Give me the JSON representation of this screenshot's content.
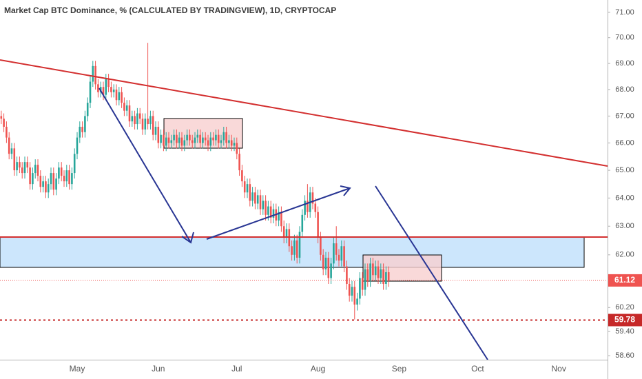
{
  "chart_data": {
    "type": "candlestick",
    "title": "Market Cap BTC Dominance, % (CALCULATED BY TRADINGVIEW), 1D, CRYPTOCAP",
    "categories": [
      null,
      null,
      null,
      null,
      null,
      null,
      null,
      null,
      null,
      null,
      null,
      null,
      null,
      null,
      null,
      null,
      null,
      null,
      null,
      null,
      null,
      null,
      null,
      null,
      null,
      null,
      null,
      null,
      null,
      "May",
      null,
      null,
      null,
      null,
      null,
      null,
      null,
      null,
      null,
      null,
      null,
      null,
      null,
      null,
      null,
      null,
      null,
      null,
      null,
      null,
      null,
      null,
      null,
      null,
      null,
      null,
      null,
      null,
      null,
      null,
      "Jun",
      null,
      null,
      null,
      null,
      null,
      null,
      null,
      null,
      null,
      null,
      null,
      null,
      null,
      null,
      null,
      null,
      null,
      null,
      null,
      null,
      null,
      null,
      null,
      null,
      null,
      null,
      null,
      null,
      null,
      "Jul",
      null,
      null,
      null,
      null,
      null,
      null,
      null,
      null,
      null,
      null,
      null,
      null,
      null,
      null,
      null,
      null,
      null,
      null,
      null,
      null,
      null,
      null,
      null,
      null,
      null,
      null,
      null,
      null,
      null,
      null,
      "Aug",
      null,
      null,
      null,
      null,
      null,
      null,
      null,
      null,
      null,
      null,
      null,
      null,
      null,
      null,
      null,
      null,
      null,
      null,
      null,
      null,
      null,
      null,
      null,
      null,
      null,
      null,
      null,
      null,
      null,
      null,
      "Sep",
      null,
      null,
      null,
      null,
      null,
      null,
      null,
      null,
      null,
      null,
      null,
      null,
      null,
      null,
      null,
      null,
      null,
      null,
      null,
      null,
      null,
      null,
      null,
      null,
      null,
      null,
      null,
      null,
      null,
      "Oct",
      null,
      null,
      null,
      null,
      null,
      null,
      null,
      null,
      null,
      null,
      null,
      null,
      null,
      null,
      null,
      null,
      null,
      null,
      null,
      null,
      null,
      null,
      null,
      null,
      null,
      null,
      null,
      null,
      null,
      null,
      "Nov",
      null,
      null,
      null,
      null,
      null,
      null,
      null,
      null,
      null,
      null
    ],
    "open": [
      67.0,
      66.9,
      66.6,
      66.2,
      65.6,
      65.8,
      65.0,
      65.3,
      65.1,
      64.9,
      65.3,
      65.1,
      64.5,
      64.9,
      65.2,
      64.8,
      64.4,
      64.6,
      64.2,
      64.5,
      64.9,
      64.3,
      64.7,
      65.1,
      64.8,
      64.6,
      65.0,
      64.5,
      64.9,
      65.6,
      66.2,
      66.6,
      66.4,
      67.0,
      67.5,
      68.3,
      68.9,
      68.2,
      67.9,
      68.1,
      67.8,
      68.4,
      68.1,
      67.9,
      68.0,
      67.6,
      67.9,
      67.5,
      67.2,
      67.4,
      66.8,
      67.0,
      66.7,
      67.1,
      66.9,
      66.5,
      66.9,
      66.7,
      67.0,
      66.3,
      66.6,
      66.0,
      66.3,
      65.9,
      66.2,
      66.0,
      66.1,
      66.3,
      66.0,
      66.2,
      65.9,
      66.1,
      66.3,
      66.1,
      66.0,
      66.2,
      66.3,
      66.0,
      66.2,
      66.1,
      65.9,
      66.2,
      66.1,
      66.3,
      66.0,
      66.1,
      66.4,
      66.0,
      66.1,
      65.9,
      66.0,
      65.6,
      65.0,
      64.6,
      64.2,
      64.5,
      63.9,
      64.2,
      63.8,
      64.1,
      63.6,
      63.9,
      63.4,
      63.7,
      63.3,
      63.6,
      63.2,
      63.5,
      63.0,
      62.6,
      62.9,
      62.3,
      62.0,
      62.5,
      61.9,
      62.8,
      63.4,
      63.9,
      63.5,
      64.2,
      63.8,
      63.5,
      62.6,
      62.0,
      61.5,
      61.9,
      61.2,
      61.7,
      62.4,
      62.0,
      61.8,
      62.3,
      61.6,
      61.0,
      60.6,
      60.9,
      60.3,
      60.5,
      61.2,
      60.8,
      61.5,
      61.1,
      61.7,
      61.3,
      61.6,
      61.2,
      61.5,
      61.0,
      61.4,
      null,
      null,
      null,
      null,
      null,
      null,
      null,
      null,
      null,
      null,
      null,
      null,
      null,
      null,
      null,
      null,
      null,
      null,
      null,
      null,
      null,
      null,
      null,
      null,
      null,
      null,
      null,
      null,
      null,
      null,
      null,
      null,
      null,
      null,
      null,
      null,
      null,
      null,
      null,
      null,
      null,
      null,
      null,
      null,
      null,
      null,
      null,
      null,
      null,
      null,
      null,
      null,
      null,
      null,
      null,
      null,
      null,
      null,
      null,
      null,
      null,
      null,
      null,
      null,
      null,
      null,
      null,
      null,
      null,
      null,
      null,
      null,
      null,
      null,
      null
    ],
    "high": [
      67.2,
      67.1,
      66.8,
      66.4,
      66.0,
      66.0,
      65.5,
      65.5,
      65.3,
      65.5,
      65.5,
      65.3,
      65.1,
      65.4,
      65.4,
      65.0,
      64.8,
      64.8,
      64.7,
      65.1,
      65.1,
      64.9,
      65.3,
      65.3,
      65.0,
      65.2,
      65.2,
      65.1,
      65.8,
      66.4,
      66.8,
      66.8,
      67.2,
      67.7,
      68.5,
      69.1,
      69.1,
      68.4,
      68.3,
      68.3,
      68.6,
      68.6,
      68.3,
      68.2,
      68.2,
      68.1,
      68.1,
      67.7,
      67.6,
      67.6,
      67.2,
      67.2,
      67.3,
      67.3,
      67.1,
      67.1,
      69.8,
      67.2,
      67.2,
      66.8,
      66.8,
      66.5,
      66.5,
      66.4,
      66.4,
      66.3,
      66.5,
      66.5,
      66.4,
      66.4,
      66.3,
      66.5,
      66.5,
      66.3,
      66.4,
      66.5,
      66.5,
      66.4,
      66.4,
      66.3,
      66.4,
      66.4,
      66.5,
      66.5,
      66.3,
      66.6,
      66.6,
      66.3,
      66.3,
      66.2,
      66.2,
      65.8,
      65.2,
      64.8,
      64.7,
      64.7,
      64.4,
      64.4,
      64.3,
      64.3,
      64.1,
      64.1,
      63.9,
      63.9,
      63.8,
      63.8,
      63.7,
      63.7,
      63.2,
      63.1,
      63.1,
      62.5,
      62.7,
      62.7,
      63.0,
      63.6,
      64.1,
      64.5,
      64.4,
      64.4,
      64.0,
      63.7,
      62.8,
      62.2,
      62.1,
      62.1,
      61.9,
      62.6,
      63.0,
      62.2,
      62.5,
      62.5,
      61.8,
      61.2,
      61.1,
      61.1,
      60.7,
      61.4,
      61.4,
      61.7,
      61.7,
      61.9,
      61.9,
      61.8,
      61.8,
      61.7,
      61.7,
      61.6,
      61.6,
      null,
      null,
      null,
      null,
      null,
      null,
      null,
      null,
      null,
      null,
      null,
      null,
      null,
      null,
      null,
      null,
      null,
      null,
      null,
      null,
      null,
      null,
      null,
      null,
      null,
      null,
      null,
      null,
      null,
      null,
      null,
      null,
      null,
      null,
      null,
      null,
      null,
      null,
      null,
      null,
      null,
      null,
      null,
      null,
      null,
      null,
      null,
      null,
      null,
      null,
      null,
      null,
      null,
      null,
      null,
      null,
      null,
      null,
      null,
      null,
      null,
      null,
      null,
      null,
      null,
      null,
      null,
      null,
      null,
      null,
      null,
      null,
      null,
      null,
      null
    ],
    "low": [
      66.7,
      66.4,
      66.0,
      65.4,
      65.4,
      64.8,
      64.8,
      64.9,
      64.7,
      64.7,
      64.9,
      64.3,
      64.3,
      64.7,
      64.6,
      64.2,
      64.2,
      64.0,
      64.0,
      64.3,
      64.1,
      64.1,
      64.5,
      64.6,
      64.4,
      64.4,
      64.3,
      64.3,
      64.7,
      65.4,
      66.0,
      66.2,
      66.2,
      66.8,
      67.3,
      68.1,
      68.0,
      67.7,
      67.7,
      67.6,
      67.6,
      67.9,
      67.7,
      67.7,
      67.4,
      67.4,
      67.3,
      67.0,
      67.0,
      66.6,
      66.6,
      66.5,
      66.5,
      66.7,
      66.3,
      66.3,
      66.5,
      66.5,
      66.1,
      66.1,
      65.8,
      65.8,
      65.7,
      65.7,
      65.8,
      65.8,
      65.9,
      65.8,
      65.8,
      65.7,
      65.7,
      65.9,
      65.9,
      65.8,
      65.8,
      66.0,
      65.8,
      65.8,
      65.9,
      65.7,
      65.7,
      65.9,
      65.9,
      65.8,
      65.8,
      65.9,
      65.8,
      65.8,
      65.7,
      65.7,
      65.4,
      64.8,
      64.4,
      64.0,
      64.0,
      63.7,
      63.7,
      63.6,
      63.6,
      63.4,
      63.4,
      63.2,
      63.2,
      63.1,
      63.1,
      63.0,
      63.0,
      62.8,
      62.4,
      62.4,
      62.1,
      61.8,
      61.8,
      61.7,
      61.7,
      62.6,
      63.2,
      63.3,
      63.3,
      63.6,
      63.3,
      62.4,
      61.8,
      61.3,
      61.3,
      61.0,
      61.0,
      61.5,
      61.8,
      61.6,
      61.6,
      61.4,
      60.8,
      60.4,
      60.4,
      59.8,
      60.1,
      60.3,
      60.6,
      60.6,
      60.9,
      60.9,
      61.1,
      61.1,
      61.0,
      61.0,
      60.8,
      60.8,
      60.9,
      null,
      null,
      null,
      null,
      null,
      null,
      null,
      null,
      null,
      null,
      null,
      null,
      null,
      null,
      null,
      null,
      null,
      null,
      null,
      null,
      null,
      null,
      null,
      null,
      null,
      null,
      null,
      null,
      null,
      null,
      null,
      null,
      null,
      null,
      null,
      null,
      null,
      null,
      null,
      null,
      null,
      null,
      null,
      null,
      null,
      null,
      null,
      null,
      null,
      null,
      null,
      null,
      null,
      null,
      null,
      null,
      null,
      null,
      null,
      null,
      null,
      null,
      null,
      null,
      null,
      null,
      null,
      null,
      null,
      null,
      null,
      null,
      null,
      null,
      null
    ],
    "close": [
      66.9,
      66.6,
      66.2,
      65.6,
      65.8,
      65.0,
      65.3,
      65.1,
      64.9,
      65.3,
      65.1,
      64.5,
      64.9,
      65.2,
      64.8,
      64.4,
      64.6,
      64.2,
      64.5,
      64.9,
      64.3,
      64.7,
      65.1,
      64.8,
      64.6,
      65.0,
      64.5,
      64.9,
      65.6,
      66.2,
      66.6,
      66.4,
      67.0,
      67.5,
      68.3,
      68.9,
      68.2,
      67.9,
      68.1,
      67.8,
      68.4,
      68.1,
      67.9,
      68.0,
      67.6,
      67.9,
      67.5,
      67.2,
      67.4,
      66.8,
      67.0,
      66.7,
      67.1,
      66.9,
      66.5,
      66.9,
      66.7,
      67.0,
      66.3,
      66.6,
      66.0,
      66.3,
      65.9,
      66.2,
      66.0,
      66.1,
      66.3,
      66.0,
      66.2,
      65.9,
      66.1,
      66.3,
      66.1,
      66.0,
      66.2,
      66.3,
      66.0,
      66.2,
      66.1,
      65.9,
      66.2,
      66.1,
      66.3,
      66.0,
      66.1,
      66.4,
      66.0,
      66.1,
      65.9,
      66.0,
      65.6,
      65.0,
      64.6,
      64.2,
      64.5,
      63.9,
      64.2,
      63.8,
      64.1,
      63.6,
      63.9,
      63.4,
      63.7,
      63.3,
      63.6,
      63.2,
      63.5,
      63.0,
      62.6,
      62.9,
      62.3,
      62.0,
      62.5,
      61.9,
      62.8,
      63.4,
      63.9,
      63.5,
      64.2,
      63.8,
      63.5,
      62.6,
      62.0,
      61.5,
      61.9,
      61.2,
      61.7,
      62.4,
      62.0,
      61.8,
      62.3,
      61.6,
      61.0,
      60.6,
      60.9,
      60.3,
      60.5,
      61.2,
      60.8,
      61.5,
      61.1,
      61.7,
      61.3,
      61.6,
      61.2,
      61.5,
      61.0,
      61.4,
      61.12,
      null,
      null,
      null,
      null,
      null,
      null,
      null,
      null,
      null,
      null,
      null,
      null,
      null,
      null,
      null,
      null,
      null,
      null,
      null,
      null,
      null,
      null,
      null,
      null,
      null,
      null,
      null,
      null,
      null,
      null,
      null,
      null,
      null,
      null,
      null,
      null,
      null,
      null,
      null,
      null,
      null,
      null,
      null,
      null,
      null,
      null,
      null,
      null,
      null,
      null,
      null,
      null,
      null,
      null,
      null,
      null,
      null,
      null,
      null,
      null,
      null,
      null,
      null,
      null,
      null,
      null,
      null,
      null,
      null,
      null,
      null,
      null,
      null,
      null,
      null
    ],
    "up_color": "#26a69a",
    "down_color": "#ef5350",
    "ylim": [
      58.47,
      71.49
    ],
    "log_scale": true,
    "grid": false,
    "yticks": [
      {
        "value": 71,
        "label": "71.00"
      },
      {
        "value": 70,
        "label": "70.00"
      },
      {
        "value": 69,
        "label": "69.00"
      },
      {
        "value": 68,
        "label": "68.00"
      },
      {
        "value": 67,
        "label": "67.00"
      },
      {
        "value": 66,
        "label": "66.00"
      },
      {
        "value": 65,
        "label": "65.00"
      },
      {
        "value": 64,
        "label": "64.00"
      },
      {
        "value": 63,
        "label": "63.00"
      },
      {
        "value": 62,
        "label": "62.00"
      },
      {
        "value": 60.2,
        "label": "60.20"
      },
      {
        "value": 59.4,
        "label": "59.40"
      },
      {
        "value": 58.6,
        "label": "58.60"
      }
    ],
    "price_lines": [
      {
        "value": 61.12,
        "color": "#ef5350",
        "style": "dotted"
      },
      {
        "value": 59.78,
        "color": "#c62828",
        "style": "dashed"
      }
    ]
  }
}
